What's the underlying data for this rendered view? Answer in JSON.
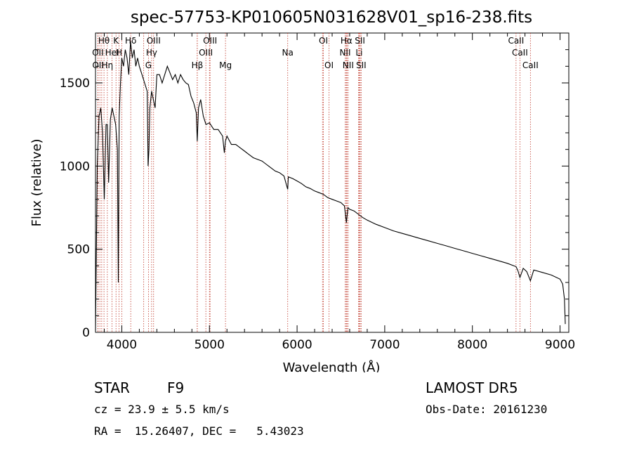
{
  "chart_data": {
    "type": "line",
    "title": "spec-57753-KP010605N031628V01_sp16-238.fits",
    "xlabel": "Wavelength (Å)",
    "ylabel": "Flux (relative)",
    "xlim": [
      3700,
      9100
    ],
    "ylim": [
      0,
      1800
    ],
    "xticks": [
      4000,
      5000,
      6000,
      7000,
      8000,
      9000
    ],
    "yticks": [
      0,
      500,
      1000,
      1500
    ],
    "grid": false,
    "series": [
      {
        "x": [
          3700,
          3720,
          3740,
          3760,
          3780,
          3800,
          3820,
          3835,
          3850,
          3870,
          3890,
          3910,
          3930,
          3950,
          3960,
          3970,
          3985,
          4000,
          4020,
          4040,
          4060,
          4080,
          4100,
          4120,
          4140,
          4160,
          4180,
          4200,
          4230,
          4260,
          4290,
          4300,
          4310,
          4320,
          4340,
          4360,
          4380,
          4400,
          4430,
          4460,
          4490,
          4520,
          4550,
          4580,
          4610,
          4640,
          4670,
          4700,
          4730,
          4760,
          4790,
          4820,
          4850,
          4861,
          4875,
          4900,
          4930,
          4960,
          5000,
          5050,
          5100,
          5150,
          5170,
          5183,
          5200,
          5250,
          5300,
          5350,
          5400,
          5450,
          5500,
          5550,
          5600,
          5650,
          5700,
          5750,
          5800,
          5850,
          5893,
          5900,
          5950,
          6000,
          6050,
          6100,
          6150,
          6200,
          6250,
          6300,
          6350,
          6400,
          6450,
          6500,
          6540,
          6563,
          6580,
          6600,
          6650,
          6700,
          6750,
          6800,
          6900,
          7000,
          7100,
          7200,
          7300,
          7400,
          7500,
          7600,
          7700,
          7800,
          7900,
          8000,
          8100,
          8200,
          8300,
          8400,
          8498,
          8520,
          8542,
          8580,
          8620,
          8662,
          8700,
          8800,
          8900,
          9000,
          9030,
          9050,
          9060
        ],
        "y": [
          10,
          1000,
          1300,
          1350,
          1200,
          800,
          1250,
          1250,
          900,
          1280,
          1350,
          1300,
          1250,
          1100,
          300,
          1300,
          1500,
          1650,
          1600,
          1700,
          1650,
          1550,
          1750,
          1650,
          1700,
          1600,
          1650,
          1600,
          1550,
          1500,
          1450,
          1000,
          1100,
          1350,
          1450,
          1400,
          1350,
          1550,
          1550,
          1500,
          1550,
          1600,
          1560,
          1520,
          1550,
          1500,
          1550,
          1520,
          1500,
          1490,
          1420,
          1380,
          1320,
          1150,
          1350,
          1400,
          1300,
          1250,
          1260,
          1220,
          1220,
          1180,
          1080,
          1150,
          1180,
          1130,
          1130,
          1110,
          1090,
          1070,
          1050,
          1040,
          1030,
          1010,
          990,
          970,
          960,
          940,
          860,
          935,
          925,
          910,
          895,
          875,
          865,
          850,
          840,
          830,
          810,
          800,
          790,
          780,
          760,
          660,
          750,
          740,
          730,
          710,
          690,
          675,
          650,
          630,
          610,
          595,
          580,
          565,
          550,
          535,
          520,
          505,
          490,
          475,
          460,
          445,
          430,
          415,
          395,
          370,
          330,
          385,
          365,
          310,
          375,
          360,
          345,
          320,
          290,
          200,
          50
        ]
      }
    ],
    "annotations": [
      {
        "label": "Hθ",
        "x": 3797,
        "row": 1
      },
      {
        "label": "K",
        "x": 3934,
        "row": 1
      },
      {
        "label": "Hδ",
        "x": 4102,
        "row": 1
      },
      {
        "label": "OIII",
        "x": 4363,
        "row": 1
      },
      {
        "label": "OIII",
        "x": 5007,
        "row": 1
      },
      {
        "label": "OI",
        "x": 6300,
        "row": 1
      },
      {
        "label": "Hα",
        "x": 6563,
        "row": 1
      },
      {
        "label": "SII",
        "x": 6717,
        "row": 1
      },
      {
        "label": "CaII",
        "x": 8498,
        "row": 1
      },
      {
        "label": "OII",
        "x": 3727,
        "row": 2
      },
      {
        "label": "HeI",
        "x": 3889,
        "row": 2
      },
      {
        "label": "H",
        "x": 3969,
        "row": 2
      },
      {
        "label": "Hγ",
        "x": 4340,
        "row": 2
      },
      {
        "label": "OIII",
        "x": 4959,
        "row": 2
      },
      {
        "label": "Na",
        "x": 5893,
        "row": 2
      },
      {
        "label": "NII",
        "x": 6548,
        "row": 2
      },
      {
        "label": "Li",
        "x": 6708,
        "row": 2
      },
      {
        "label": "CaII",
        "x": 8542,
        "row": 2
      },
      {
        "label": "OII",
        "x": 3729,
        "row": 3
      },
      {
        "label": "Hη",
        "x": 3835,
        "row": 3
      },
      {
        "label": "G",
        "x": 4304,
        "row": 3
      },
      {
        "label": "Hβ",
        "x": 4861,
        "row": 3
      },
      {
        "label": "Mg",
        "x": 5183,
        "row": 3
      },
      {
        "label": "OI",
        "x": 6364,
        "row": 3
      },
      {
        "label": "NII",
        "x": 6583,
        "row": 3
      },
      {
        "label": "SII",
        "x": 6731,
        "row": 3
      },
      {
        "label": "CaII",
        "x": 8662,
        "row": 3
      }
    ],
    "extra_lines": [
      3750,
      3771,
      4000,
      4250,
      4860,
      5000,
      6290,
      6560,
      6570,
      6700,
      6720
    ]
  },
  "info": {
    "class": "STAR",
    "subclass": "F9",
    "survey": "LAMOST DR5",
    "cz": "cz = 23.9 ± 5.5 km/s",
    "obs_date": "Obs-Date: 20161230",
    "coords": "RA =  15.26407, DEC =   5.43023"
  }
}
